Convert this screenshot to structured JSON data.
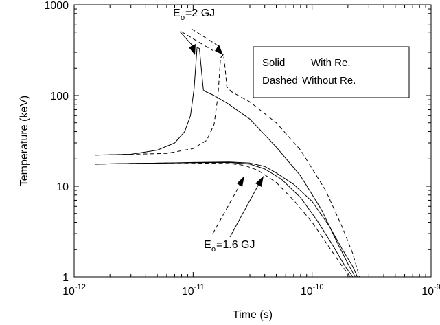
{
  "chart_data": {
    "type": "line",
    "xlabel": "Time (s)",
    "ylabel": "Temperature (keV)",
    "xscale": "log",
    "yscale": "log",
    "xlim": [
      1e-12,
      1e-09
    ],
    "ylim": [
      1,
      1000
    ],
    "x_ticks": [
      {
        "value": 1e-12,
        "base": "10",
        "exp": "-12"
      },
      {
        "value": 1e-11,
        "base": "10",
        "exp": "-11"
      },
      {
        "value": 1e-10,
        "base": "10",
        "exp": "-10"
      },
      {
        "value": 1e-09,
        "base": "10",
        "exp": "-9"
      }
    ],
    "y_ticks": [
      {
        "value": 1,
        "label": "1"
      },
      {
        "value": 10,
        "label": "10"
      },
      {
        "value": 100,
        "label": "100"
      },
      {
        "value": 1000,
        "label": "1000"
      }
    ],
    "legend": {
      "placement": "top-right",
      "lines": [
        {
          "style": "Solid",
          "desc": "With Re."
        },
        {
          "style": "Dashed",
          "desc": "Without Re."
        }
      ]
    },
    "annotations": [
      {
        "main": "E",
        "sub": "o",
        "rest": "=2 GJ"
      },
      {
        "main": "E",
        "sub": "o",
        "rest": "=1.6 GJ"
      }
    ],
    "series": [
      {
        "style": "solid",
        "x": [
          1.5e-12,
          3e-12,
          5e-12,
          7e-12,
          8.5e-12,
          9.5e-12,
          1.02e-11,
          1.08e-11,
          1.13e-11,
          1.18e-11,
          1.22e-11,
          1.28e-11,
          1.5e-11,
          2e-11,
          3e-11,
          5e-11,
          8e-11,
          1.2e-10,
          1.6e-10,
          2e-10,
          2.3e-10
        ],
        "y": [
          22,
          22.5,
          25,
          30,
          40,
          60,
          120,
          340,
          330,
          180,
          115,
          110,
          100,
          80,
          55,
          27,
          13,
          5.5,
          2.5,
          1.4,
          1.0
        ]
      },
      {
        "style": "dashed",
        "x": [
          1.5e-12,
          3e-12,
          6e-12,
          1e-11,
          1.3e-11,
          1.5e-11,
          1.62e-11,
          1.7e-11,
          1.8e-11,
          1.86e-11,
          1.92e-11,
          2.1e-11,
          3e-11,
          5e-11,
          8e-11,
          1.3e-10,
          1.8e-10,
          2.2e-10,
          2.5e-10
        ],
        "y": [
          22,
          22.5,
          23,
          26,
          32,
          48,
          100,
          260,
          285,
          200,
          125,
          110,
          85,
          50,
          25,
          9,
          3.5,
          1.8,
          1.0
        ]
      },
      {
        "style": "solid",
        "x": [
          1.5e-12,
          3e-12,
          6e-12,
          1e-11,
          2e-11,
          3e-11,
          4e-11,
          5.5e-11,
          8e-11,
          1.1e-10,
          1.5e-10,
          1.9e-10,
          2.2e-10
        ],
        "y": [
          17.5,
          17.8,
          18,
          18.2,
          18.3,
          17.5,
          15.5,
          12,
          7.5,
          4.2,
          2.2,
          1.3,
          1.0
        ]
      },
      {
        "style": "solid",
        "x": [
          1.5e-12,
          3e-12,
          6e-12,
          1e-11,
          2e-11,
          3e-11,
          4e-11,
          5e-11,
          7e-11,
          1e-10,
          1.4e-10,
          1.8e-10,
          2.2e-10,
          2.4e-10
        ],
        "y": [
          17.5,
          17.8,
          18,
          18.3,
          18.5,
          18,
          16.5,
          14,
          10.5,
          6.8,
          3.6,
          2.0,
          1.3,
          1.0
        ]
      },
      {
        "style": "dashed",
        "x": [
          1.5e-12,
          3e-12,
          6e-12,
          1e-11,
          2e-11,
          2.7e-11,
          3.5e-11,
          5e-11,
          7e-11,
          1e-10,
          1.4e-10,
          1.8e-10,
          2.1e-10
        ],
        "y": [
          17.5,
          17.8,
          18,
          18,
          17.8,
          17,
          15,
          11,
          7,
          4,
          2.1,
          1.3,
          1.0
        ]
      }
    ]
  }
}
